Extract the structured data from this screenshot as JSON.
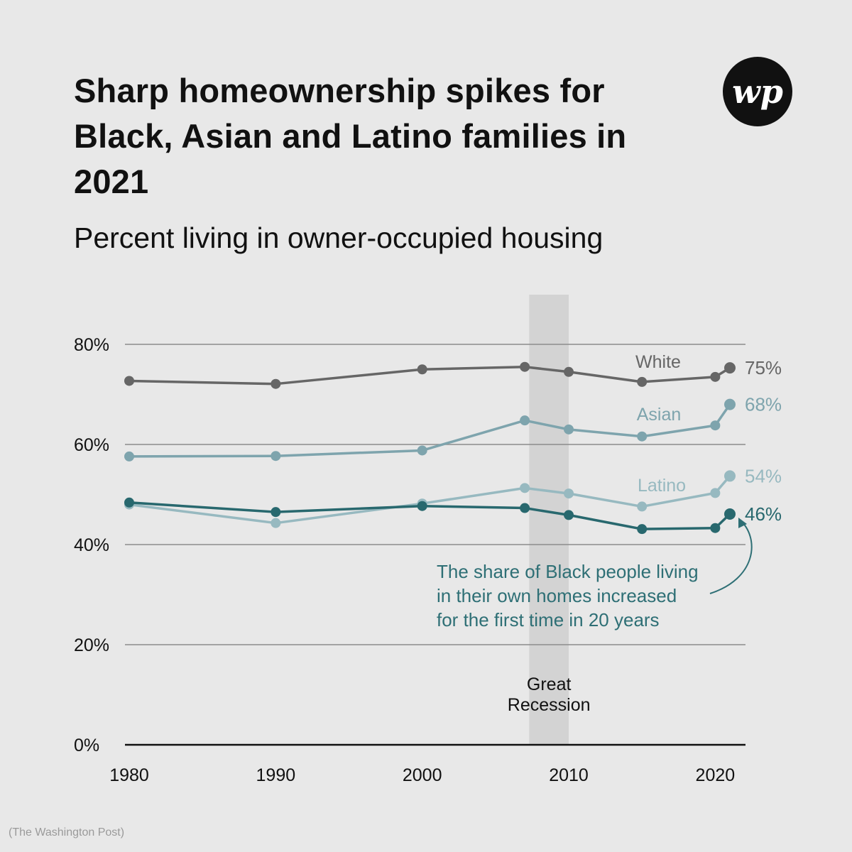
{
  "header": {
    "title": "Sharp homeownership spikes for Black, Asian and Latino families in 2021",
    "subtitle": "Percent living in owner-occupied housing",
    "logo_text": "wp",
    "logo_icon": "washington-post-logo-icon"
  },
  "credit": "(The Washington Post)",
  "chart_data": {
    "type": "line",
    "title": "Sharp homeownership spikes for Black, Asian and Latino families in 2021",
    "subtitle": "Percent living in owner-occupied housing",
    "xlabel": "",
    "ylabel": "",
    "xlim": [
      1980,
      2022
    ],
    "ylim": [
      0,
      80
    ],
    "x_ticks": [
      1980,
      1990,
      2000,
      2010,
      2020
    ],
    "x_tick_labels": [
      "1980",
      "1990",
      "2000",
      "2010",
      "2020"
    ],
    "y_ticks": [
      0,
      20,
      40,
      60,
      80
    ],
    "y_tick_labels": [
      "0%",
      "20%",
      "40%",
      "60%",
      "80%"
    ],
    "grid": true,
    "series": [
      {
        "name": "White",
        "color": "#666666",
        "end_label": "75%",
        "points": [
          [
            1980,
            72.7
          ],
          [
            1990,
            72.1
          ],
          [
            2000,
            75.0
          ],
          [
            2007,
            75.5
          ],
          [
            2010,
            74.5
          ],
          [
            2015,
            72.5
          ],
          [
            2020,
            73.5
          ],
          [
            2021,
            75.3
          ]
        ]
      },
      {
        "name": "Asian",
        "color": "#7ea4ad",
        "end_label": "68%",
        "points": [
          [
            1980,
            57.6
          ],
          [
            1990,
            57.7
          ],
          [
            2000,
            58.8
          ],
          [
            2007,
            64.8
          ],
          [
            2010,
            63.0
          ],
          [
            2015,
            61.6
          ],
          [
            2020,
            63.8
          ],
          [
            2021,
            68.0
          ]
        ]
      },
      {
        "name": "Latino",
        "color": "#97b9c0",
        "end_label": "54%",
        "points": [
          [
            1980,
            48.0
          ],
          [
            1990,
            44.3
          ],
          [
            2000,
            48.2
          ],
          [
            2007,
            51.3
          ],
          [
            2010,
            50.2
          ],
          [
            2015,
            47.6
          ],
          [
            2020,
            50.3
          ],
          [
            2021,
            53.7
          ]
        ]
      },
      {
        "name": "",
        "color": "#28686e",
        "end_label": "46%",
        "points": [
          [
            1980,
            48.4
          ],
          [
            1990,
            46.5
          ],
          [
            2000,
            47.7
          ],
          [
            2007,
            47.3
          ],
          [
            2010,
            45.9
          ],
          [
            2015,
            43.1
          ],
          [
            2020,
            43.3
          ],
          [
            2021,
            46.1
          ]
        ]
      }
    ],
    "shaded_region": {
      "x_range": [
        2007.3,
        2010.0
      ],
      "label_lines": [
        "Great",
        "Recession"
      ],
      "color": "#d3d3d3"
    },
    "annotation": {
      "lines": [
        "The share of Black people living",
        "in their own homes increased",
        "for the first time in 20 years"
      ],
      "color": "#2e6f75"
    }
  }
}
